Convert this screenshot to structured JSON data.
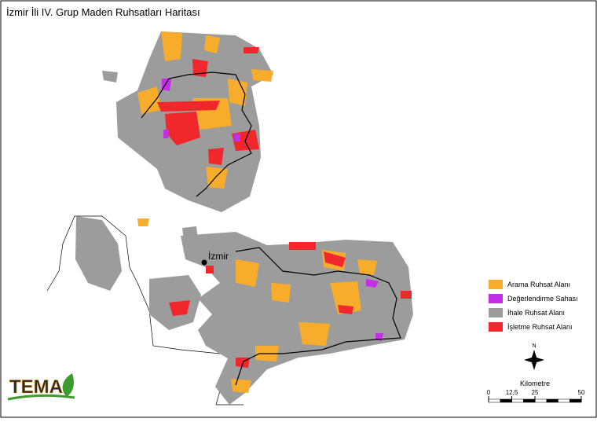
{
  "title": "İzmir İli IV. Grup Maden Ruhsatları Haritası",
  "legend": [
    {
      "label": "Arama Ruhsat Alanı",
      "color": "#f7ac2b"
    },
    {
      "label": "Değerlendirme Sahası",
      "color": "#c52ee8"
    },
    {
      "label": "İhale Ruhsat Alanı",
      "color": "#9c9c9c"
    },
    {
      "label": "İşletme Ruhsat Alanı",
      "color": "#f0282b"
    }
  ],
  "city": {
    "label": "İzmir"
  },
  "north_arrow": {
    "label": "N"
  },
  "scale_bar": {
    "title": "Kilometre",
    "ticks": [
      0,
      {
        "value": 12.5,
        "label": "12,5"
      },
      25,
      50
    ]
  },
  "logo": {
    "text": "TEMA"
  }
}
